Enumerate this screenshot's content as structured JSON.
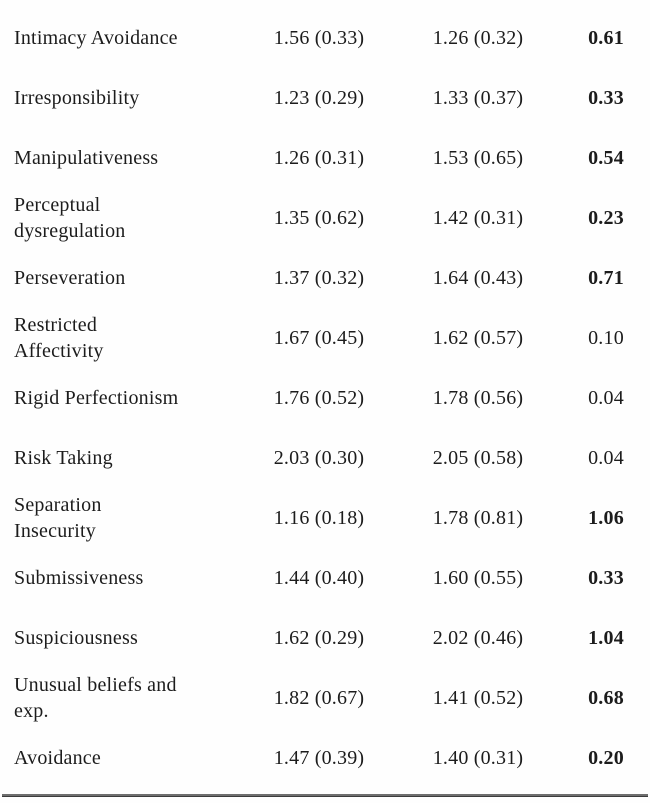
{
  "table": {
    "description": "Facet means (SD) by group with effect sizes",
    "rows": [
      {
        "facet": "Intimacy Avoidance",
        "group1": "1.56 (0.33)",
        "group2": "1.26 (0.32)",
        "effect": "0.61",
        "effect_bold": true
      },
      {
        "facet": "Irresponsibility",
        "group1": "1.23 (0.29)",
        "group2": "1.33 (0.37)",
        "effect": "0.33",
        "effect_bold": true
      },
      {
        "facet": "Manipulativeness",
        "group1": "1.26 (0.31)",
        "group2": "1.53 (0.65)",
        "effect": "0.54",
        "effect_bold": true
      },
      {
        "facet": "Perceptual\ndysregulation",
        "group1": "1.35 (0.62)",
        "group2": "1.42 (0.31)",
        "effect": "0.23",
        "effect_bold": true
      },
      {
        "facet": "Perseveration",
        "group1": "1.37 (0.32)",
        "group2": "1.64 (0.43)",
        "effect": "0.71",
        "effect_bold": true
      },
      {
        "facet": "Restricted\nAffectivity",
        "group1": "1.67 (0.45)",
        "group2": "1.62 (0.57)",
        "effect": "0.10",
        "effect_bold": false
      },
      {
        "facet": "Rigid Perfectionism",
        "group1": "1.76 (0.52)",
        "group2": "1.78 (0.56)",
        "effect": "0.04",
        "effect_bold": false
      },
      {
        "facet": "Risk Taking",
        "group1": "2.03 (0.30)",
        "group2": "2.05 (0.58)",
        "effect": "0.04",
        "effect_bold": false
      },
      {
        "facet": "Separation\nInsecurity",
        "group1": "1.16 (0.18)",
        "group2": "1.78 (0.81)",
        "effect": "1.06",
        "effect_bold": true
      },
      {
        "facet": "Submissiveness",
        "group1": "1.44 (0.40)",
        "group2": "1.60 (0.55)",
        "effect": "0.33",
        "effect_bold": true
      },
      {
        "facet": "Suspiciousness",
        "group1": "1.62 (0.29)",
        "group2": "2.02 (0.46)",
        "effect": "1.04",
        "effect_bold": true
      },
      {
        "facet": "Unusual beliefs and\nexp.",
        "group1": "1.82 (0.67)",
        "group2": "1.41 (0.52)",
        "effect": "0.68",
        "effect_bold": true
      },
      {
        "facet": "Avoidance",
        "group1": "1.47 (0.39)",
        "group2": "1.40 (0.31)",
        "effect": "0.20",
        "effect_bold": true
      }
    ]
  },
  "style": {
    "text_color": "#1c1c1c",
    "rule_color": "#6e6e6e",
    "background": "#fefefe"
  }
}
